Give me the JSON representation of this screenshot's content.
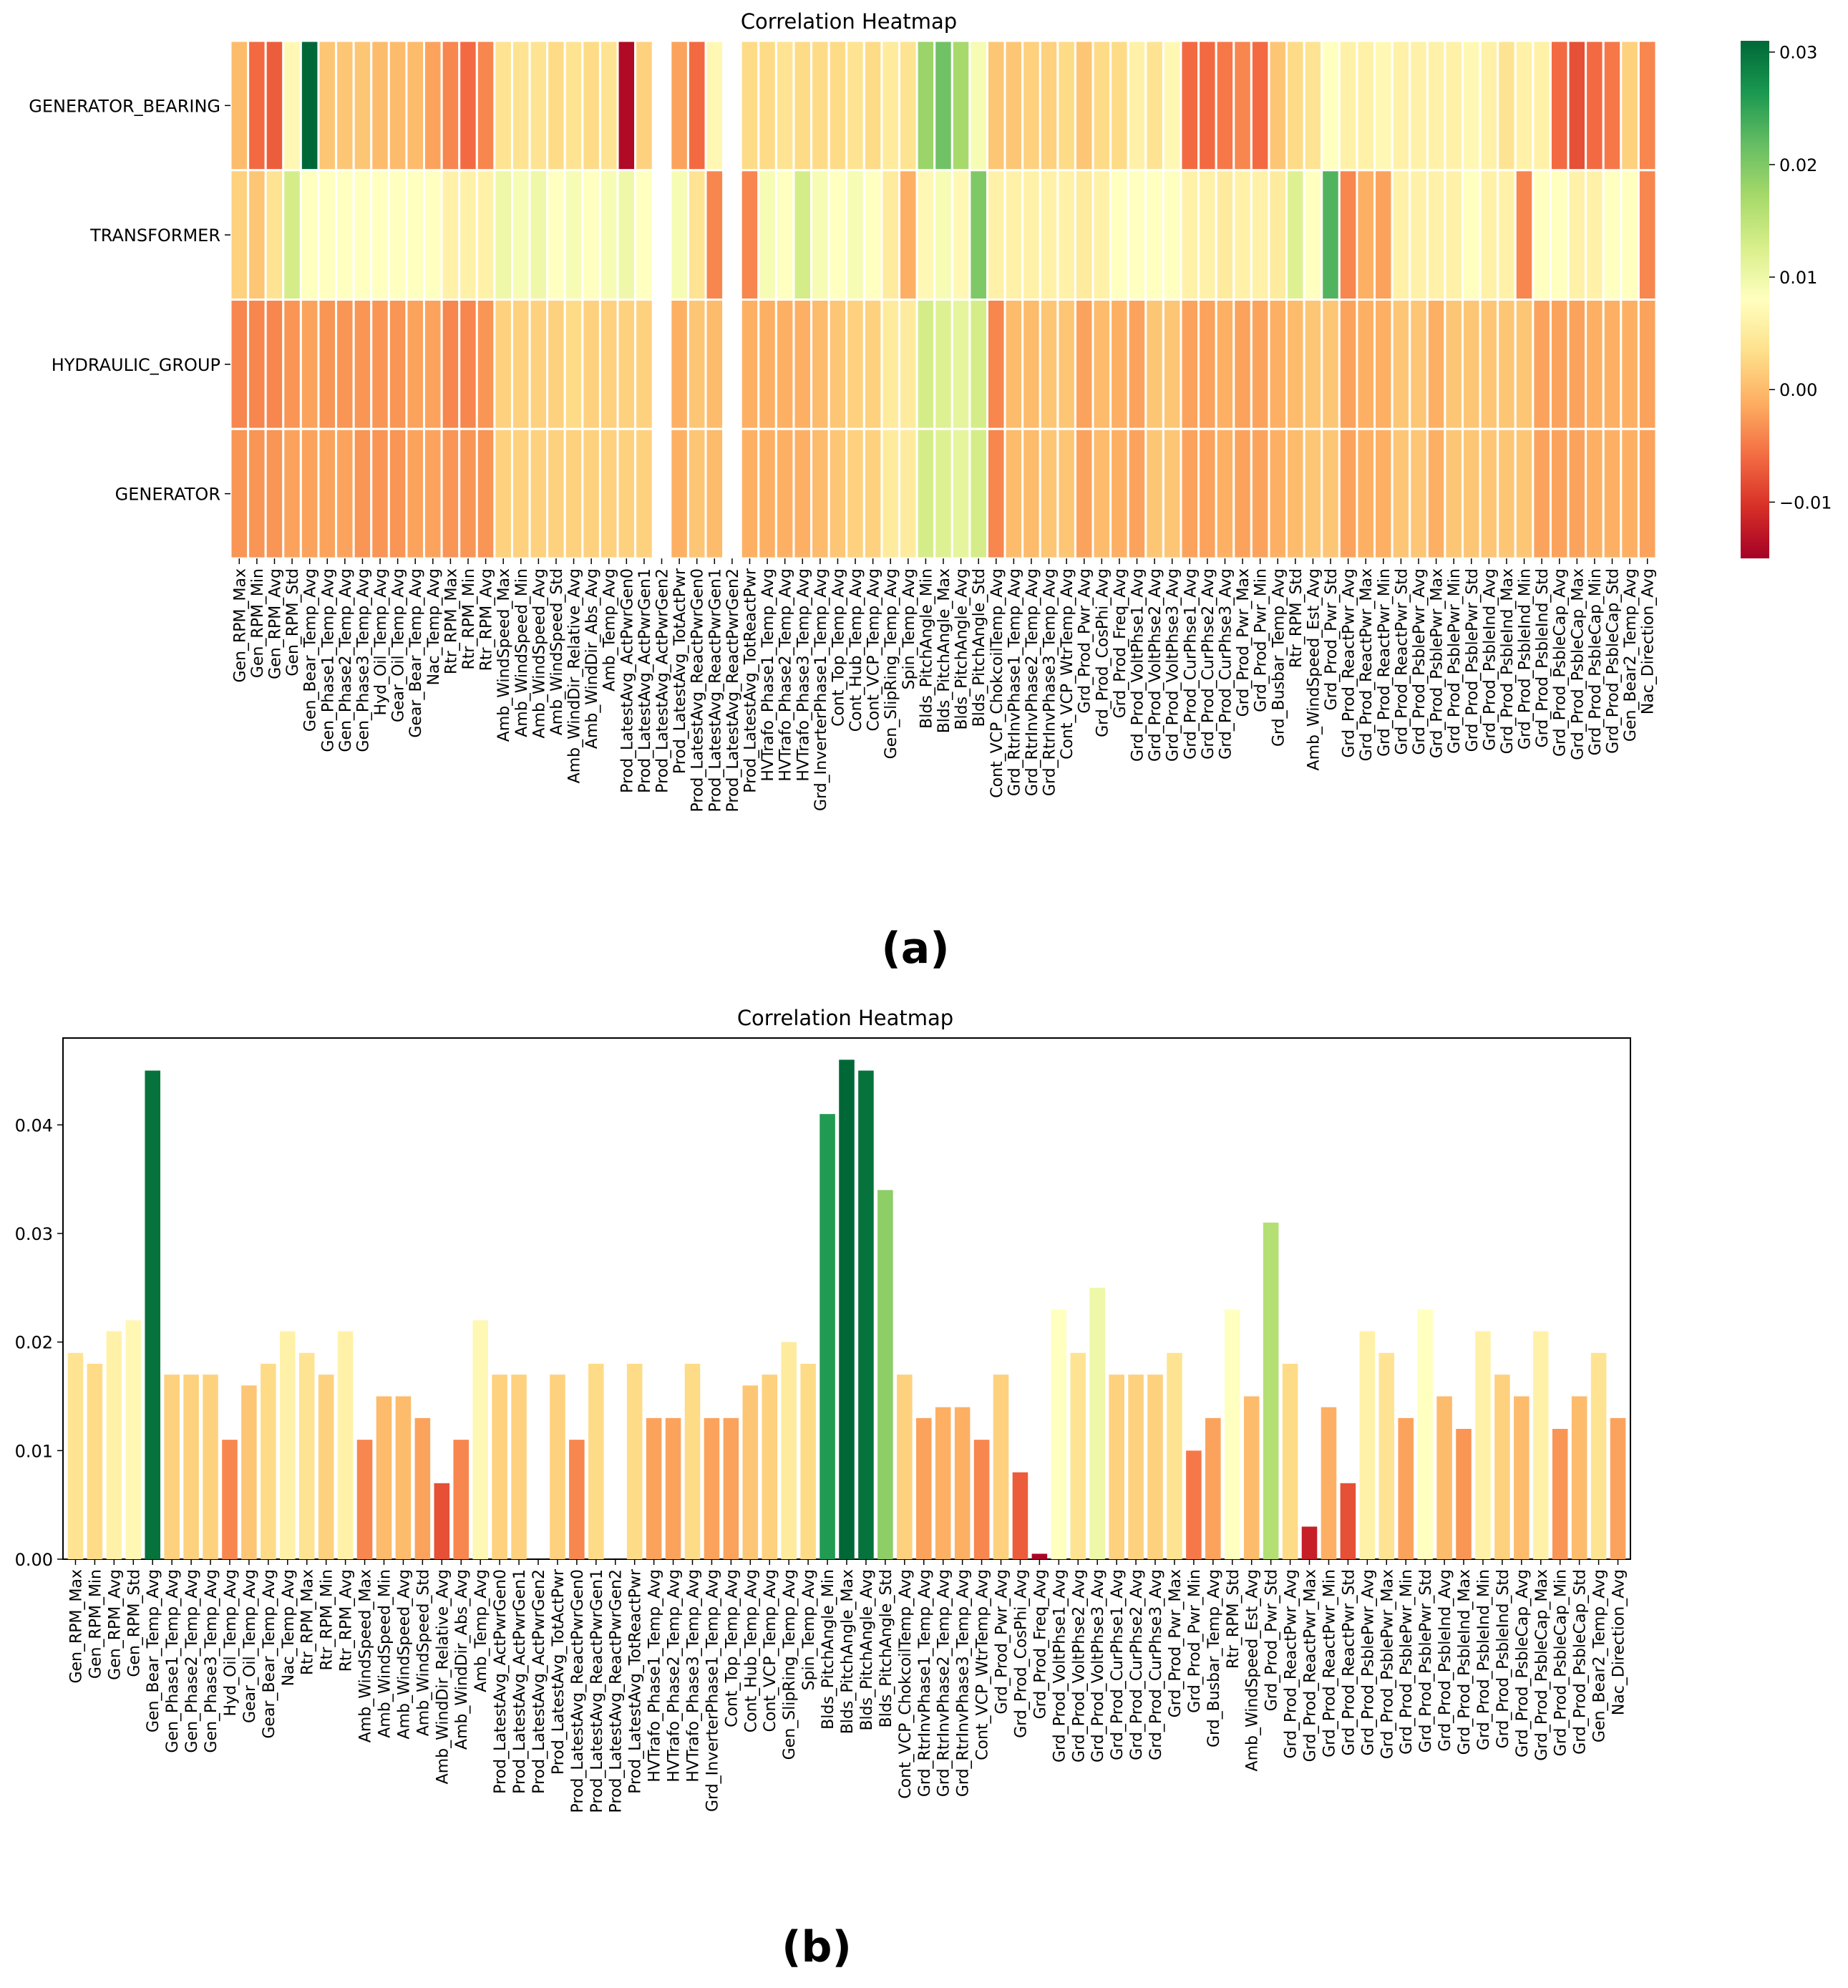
{
  "figure": {
    "panel_a_label": "(a)",
    "panel_b_label": "(b)"
  },
  "chart_data": [
    {
      "type": "heatmap",
      "title": "Correlation Heatmap",
      "rows": [
        "GENERATOR_BEARING",
        "TRANSFORMER",
        "HYDRAULIC_GROUP",
        "GENERATOR"
      ],
      "columns": [
        "Gen_RPM_Max",
        "Gen_RPM_Min",
        "Gen_RPM_Avg",
        "Gen_RPM_Std",
        "Gen_Bear_Temp_Avg",
        "Gen_Phase1_Temp_Avg",
        "Gen_Phase2_Temp_Avg",
        "Gen_Phase3_Temp_Avg",
        "Hyd_Oil_Temp_Avg",
        "Gear_Oil_Temp_Avg",
        "Gear_Bear_Temp_Avg",
        "Nac_Temp_Avg",
        "Rtr_RPM_Max",
        "Rtr_RPM_Min",
        "Rtr_RPM_Avg",
        "Amb_WindSpeed_Max",
        "Amb_WindSpeed_Min",
        "Amb_WindSpeed_Avg",
        "Amb_WindSpeed_Std",
        "Amb_WindDir_Relative_Avg",
        "Amb_WindDir_Abs_Avg",
        "Amb_Temp_Avg",
        "Prod_LatestAvg_ActPwrGen0",
        "Prod_LatestAvg_ActPwrGen1",
        "Prod_LatestAvg_ActPwrGen2",
        "Prod_LatestAvg_TotActPwr",
        "Prod_LatestAvg_ReactPwrGen0",
        "Prod_LatestAvg_ReactPwrGen1",
        "Prod_LatestAvg_ReactPwrGen2",
        "Prod_LatestAvg_TotReactPwr",
        "HVTrafo_Phase1_Temp_Avg",
        "HVTrafo_Phase2_Temp_Avg",
        "HVTrafo_Phase3_Temp_Avg",
        "Grd_InverterPhase1_Temp_Avg",
        "Cont_Top_Temp_Avg",
        "Cont_Hub_Temp_Avg",
        "Cont_VCP_Temp_Avg",
        "Gen_SlipRing_Temp_Avg",
        "Spin_Temp_Avg",
        "Blds_PitchAngle_Min",
        "Blds_PitchAngle_Max",
        "Blds_PitchAngle_Avg",
        "Blds_PitchAngle_Std",
        "Cont_VCP_ChokcoilTemp_Avg",
        "Grd_RtrInvPhase1_Temp_Avg",
        "Grd_RtrInvPhase2_Temp_Avg",
        "Grd_RtrInvPhase3_Temp_Avg",
        "Cont_VCP_WtrTemp_Avg",
        "Grd_Prod_Pwr_Avg",
        "Grd_Prod_CosPhi_Avg",
        "Grd_Prod_Freq_Avg",
        "Grd_Prod_VoltPhse1_Avg",
        "Grd_Prod_VoltPhse2_Avg",
        "Grd_Prod_VoltPhse3_Avg",
        "Grd_Prod_CurPhse1_Avg",
        "Grd_Prod_CurPhse2_Avg",
        "Grd_Prod_CurPhse3_Avg",
        "Grd_Prod_Pwr_Max",
        "Grd_Prod_Pwr_Min",
        "Grd_Busbar_Temp_Avg",
        "Rtr_RPM_Std",
        "Amb_WindSpeed_Est_Avg",
        "Grd_Prod_Pwr_Std",
        "Grd_Prod_ReactPwr_Avg",
        "Grd_Prod_ReactPwr_Max",
        "Grd_Prod_ReactPwr_Min",
        "Grd_Prod_ReactPwr_Std",
        "Grd_Prod_PsblePwr_Avg",
        "Grd_Prod_PsblePwr_Max",
        "Grd_Prod_PsblePwr_Min",
        "Grd_Prod_PsblePwr_Std",
        "Grd_Prod_PsbleInd_Avg",
        "Grd_Prod_PsbleInd_Max",
        "Grd_Prod_PsbleInd_Min",
        "Grd_Prod_PsbleInd_Std",
        "Grd_Prod_PsbleCap_Avg",
        "Grd_Prod_PsbleCap_Max",
        "Grd_Prod_PsbleCap_Min",
        "Grd_Prod_PsbleCap_Std",
        "Gen_Bear2_Temp_Avg",
        "Nac_Direction_Avg"
      ],
      "values": [
        [
          0.0,
          -0.006,
          -0.007,
          0.007,
          0.031,
          0.001,
          0.001,
          0.001,
          0.0,
          0.0,
          0.0,
          -0.002,
          -0.004,
          -0.006,
          -0.004,
          0.004,
          0.004,
          0.004,
          0.003,
          0.004,
          0.003,
          0.004,
          -0.014,
          0.002,
          null,
          -0.002,
          -0.006,
          0.007,
          null,
          0.003,
          0.003,
          0.004,
          0.003,
          0.003,
          0.003,
          0.004,
          0.003,
          0.005,
          0.004,
          0.018,
          0.021,
          0.017,
          0.009,
          0.001,
          0.001,
          0.002,
          0.002,
          0.003,
          0.001,
          0.003,
          0.003,
          0.006,
          0.004,
          0.007,
          -0.006,
          -0.006,
          -0.005,
          -0.004,
          -0.006,
          0.001,
          0.003,
          0.004,
          0.008,
          0.006,
          0.006,
          0.007,
          0.006,
          0.006,
          0.006,
          0.006,
          0.007,
          0.006,
          0.004,
          0.006,
          0.006,
          -0.006,
          -0.008,
          -0.006,
          -0.005,
          0.002,
          -0.004
        ],
        [
          0.002,
          0.001,
          0.004,
          0.013,
          0.008,
          0.008,
          0.008,
          0.008,
          0.008,
          0.008,
          0.008,
          0.008,
          0.006,
          0.006,
          0.006,
          0.01,
          0.009,
          0.01,
          0.008,
          0.009,
          0.008,
          0.009,
          0.01,
          0.008,
          null,
          0.009,
          0.004,
          -0.004,
          null,
          -0.004,
          0.009,
          0.008,
          0.013,
          0.009,
          0.008,
          0.009,
          0.008,
          0.005,
          -0.001,
          0.007,
          0.009,
          0.007,
          0.02,
          0.006,
          0.006,
          0.006,
          0.006,
          0.006,
          0.005,
          0.006,
          0.008,
          0.008,
          0.008,
          0.008,
          0.006,
          0.006,
          0.005,
          0.006,
          0.006,
          0.005,
          0.012,
          0.008,
          0.023,
          -0.004,
          -0.001,
          -0.002,
          0.006,
          0.006,
          0.006,
          0.006,
          0.008,
          0.006,
          0.006,
          -0.004,
          0.008,
          0.008,
          0.006,
          0.006,
          0.008,
          0.008,
          -0.004
        ],
        [
          -0.004,
          -0.004,
          -0.004,
          -0.003,
          -0.002,
          -0.003,
          -0.003,
          -0.003,
          -0.003,
          -0.003,
          -0.002,
          -0.002,
          -0.004,
          -0.004,
          -0.003,
          0.002,
          0.002,
          0.002,
          0.002,
          0.003,
          0.002,
          0.002,
          0.002,
          0.002,
          null,
          -0.001,
          0.001,
          0.0,
          null,
          -0.001,
          -0.001,
          -0.001,
          -0.001,
          0.0,
          0.001,
          0.002,
          0.002,
          0.005,
          0.005,
          0.013,
          0.012,
          0.011,
          0.013,
          -0.004,
          0.0,
          0.0,
          0.001,
          0.001,
          -0.002,
          0.0,
          -0.001,
          -0.002,
          0.001,
          0.001,
          -0.002,
          -0.002,
          -0.001,
          -0.002,
          -0.002,
          -0.001,
          0.0,
          0.001,
          0.001,
          -0.002,
          -0.001,
          -0.001,
          0.001,
          0.001,
          -0.001,
          0.001,
          0.001,
          0.001,
          0.001,
          0.001,
          -0.002,
          -0.002,
          -0.002,
          -0.001,
          -0.001,
          -0.001,
          -0.002
        ],
        [
          -0.003,
          -0.003,
          -0.003,
          -0.002,
          -0.002,
          -0.002,
          -0.002,
          -0.003,
          -0.003,
          -0.003,
          -0.002,
          -0.002,
          -0.003,
          -0.003,
          -0.003,
          0.002,
          0.002,
          0.002,
          0.002,
          0.002,
          0.002,
          0.002,
          0.002,
          0.002,
          null,
          -0.001,
          0.001,
          0.0,
          null,
          -0.001,
          -0.001,
          -0.001,
          -0.001,
          0.0,
          0.001,
          0.002,
          0.002,
          0.005,
          0.005,
          0.013,
          0.012,
          0.011,
          0.013,
          -0.004,
          0.0,
          0.0,
          0.001,
          0.001,
          -0.002,
          0.0,
          -0.001,
          -0.002,
          0.001,
          0.001,
          -0.002,
          -0.002,
          -0.001,
          -0.002,
          -0.002,
          -0.001,
          0.0,
          0.001,
          0.001,
          -0.002,
          -0.001,
          -0.001,
          0.001,
          0.001,
          -0.001,
          0.001,
          0.001,
          0.001,
          0.001,
          0.001,
          -0.002,
          -0.002,
          -0.002,
          -0.001,
          -0.001,
          -0.001,
          -0.002
        ]
      ],
      "colorbar": {
        "min": -0.015,
        "max": 0.031,
        "ticks": [
          -0.01,
          0.0,
          0.01,
          0.02,
          0.03
        ],
        "tick_labels": [
          "−0.01",
          "0.00",
          "0.01",
          "0.02",
          "0.03"
        ]
      },
      "colormap": "RdYlGn"
    },
    {
      "type": "bar",
      "title": "Correlation Heatmap",
      "categories": [
        "Gen_RPM_Max",
        "Gen_RPM_Min",
        "Gen_RPM_Avg",
        "Gen_RPM_Std",
        "Gen_Bear_Temp_Avg",
        "Gen_Phase1_Temp_Avg",
        "Gen_Phase2_Temp_Avg",
        "Gen_Phase3_Temp_Avg",
        "Hyd_Oil_Temp_Avg",
        "Gear_Oil_Temp_Avg",
        "Gear_Bear_Temp_Avg",
        "Nac_Temp_Avg",
        "Rtr_RPM_Max",
        "Rtr_RPM_Min",
        "Rtr_RPM_Avg",
        "Amb_WindSpeed_Max",
        "Amb_WindSpeed_Min",
        "Amb_WindSpeed_Avg",
        "Amb_WindSpeed_Std",
        "Amb_WindDir_Relative_Avg",
        "Amb_WindDir_Abs_Avg",
        "Amb_Temp_Avg",
        "Prod_LatestAvg_ActPwrGen0",
        "Prod_LatestAvg_ActPwrGen1",
        "Prod_LatestAvg_ActPwrGen2",
        "Prod_LatestAvg_TotActPwr",
        "Prod_LatestAvg_ReactPwrGen0",
        "Prod_LatestAvg_ReactPwrGen1",
        "Prod_LatestAvg_ReactPwrGen2",
        "Prod_LatestAvg_TotReactPwr",
        "HVTrafo_Phase1_Temp_Avg",
        "HVTrafo_Phase2_Temp_Avg",
        "HVTrafo_Phase3_Temp_Avg",
        "Grd_InverterPhase1_Temp_Avg",
        "Cont_Top_Temp_Avg",
        "Cont_Hub_Temp_Avg",
        "Cont_VCP_Temp_Avg",
        "Gen_SlipRing_Temp_Avg",
        "Spin_Temp_Avg",
        "Blds_PitchAngle_Min",
        "Blds_PitchAngle_Max",
        "Blds_PitchAngle_Avg",
        "Blds_PitchAngle_Std",
        "Cont_VCP_ChokcoilTemp_Avg",
        "Grd_RtrInvPhase1_Temp_Avg",
        "Grd_RtrInvPhase2_Temp_Avg",
        "Grd_RtrInvPhase3_Temp_Avg",
        "Cont_VCP_WtrTemp_Avg",
        "Grd_Prod_Pwr_Avg",
        "Grd_Prod_CosPhi_Avg",
        "Grd_Prod_Freq_Avg",
        "Grd_Prod_VoltPhse1_Avg",
        "Grd_Prod_VoltPhse2_Avg",
        "Grd_Prod_VoltPhse3_Avg",
        "Grd_Prod_CurPhse1_Avg",
        "Grd_Prod_CurPhse2_Avg",
        "Grd_Prod_CurPhse3_Avg",
        "Grd_Prod_Pwr_Max",
        "Grd_Prod_Pwr_Min",
        "Grd_Busbar_Temp_Avg",
        "Rtr_RPM_Std",
        "Amb_WindSpeed_Est_Avg",
        "Grd_Prod_Pwr_Std",
        "Grd_Prod_ReactPwr_Avg",
        "Grd_Prod_ReactPwr_Max",
        "Grd_Prod_ReactPwr_Min",
        "Grd_Prod_ReactPwr_Std",
        "Grd_Prod_PsblePwr_Avg",
        "Grd_Prod_PsblePwr_Max",
        "Grd_Prod_PsblePwr_Min",
        "Grd_Prod_PsblePwr_Std",
        "Grd_Prod_PsbleInd_Avg",
        "Grd_Prod_PsbleInd_Max",
        "Grd_Prod_PsbleInd_Min",
        "Grd_Prod_PsbleInd_Std",
        "Grd_Prod_PsbleCap_Avg",
        "Grd_Prod_PsbleCap_Max",
        "Grd_Prod_PsbleCap_Min",
        "Grd_Prod_PsbleCap_Std",
        "Gen_Bear2_Temp_Avg",
        "Nac_Direction_Avg"
      ],
      "values": [
        0.019,
        0.018,
        0.021,
        0.022,
        0.045,
        0.017,
        0.017,
        0.017,
        0.011,
        0.016,
        0.018,
        0.021,
        0.019,
        0.017,
        0.021,
        0.011,
        0.015,
        0.015,
        0.013,
        0.007,
        0.011,
        0.022,
        0.017,
        0.017,
        0,
        0.017,
        0.011,
        0.018,
        0,
        0.018,
        0.013,
        0.013,
        0.018,
        0.013,
        0.013,
        0.016,
        0.017,
        0.02,
        0.018,
        0.041,
        0.046,
        0.045,
        0.034,
        0.017,
        0.013,
        0.014,
        0.014,
        0.011,
        0.017,
        0.008,
        0.0005,
        0.023,
        0.019,
        0.025,
        0.017,
        0.017,
        0.017,
        0.019,
        0.01,
        0.013,
        0.023,
        0.015,
        0.031,
        0.018,
        0.003,
        0.014,
        0.007,
        0.021,
        0.019,
        0.013,
        0.023,
        0.015,
        0.012,
        0.021,
        0.017,
        0.015,
        0.021,
        0.012,
        0.015,
        0.019,
        0.013
      ],
      "ylim": [
        0,
        0.048
      ],
      "yticks": [
        0.0,
        0.01,
        0.02,
        0.03,
        0.04
      ],
      "ytick_labels": [
        "0.00",
        "0.01",
        "0.02",
        "0.03",
        "0.04"
      ],
      "xlabel": "",
      "ylabel": "",
      "colormap": "RdYlGn"
    }
  ]
}
